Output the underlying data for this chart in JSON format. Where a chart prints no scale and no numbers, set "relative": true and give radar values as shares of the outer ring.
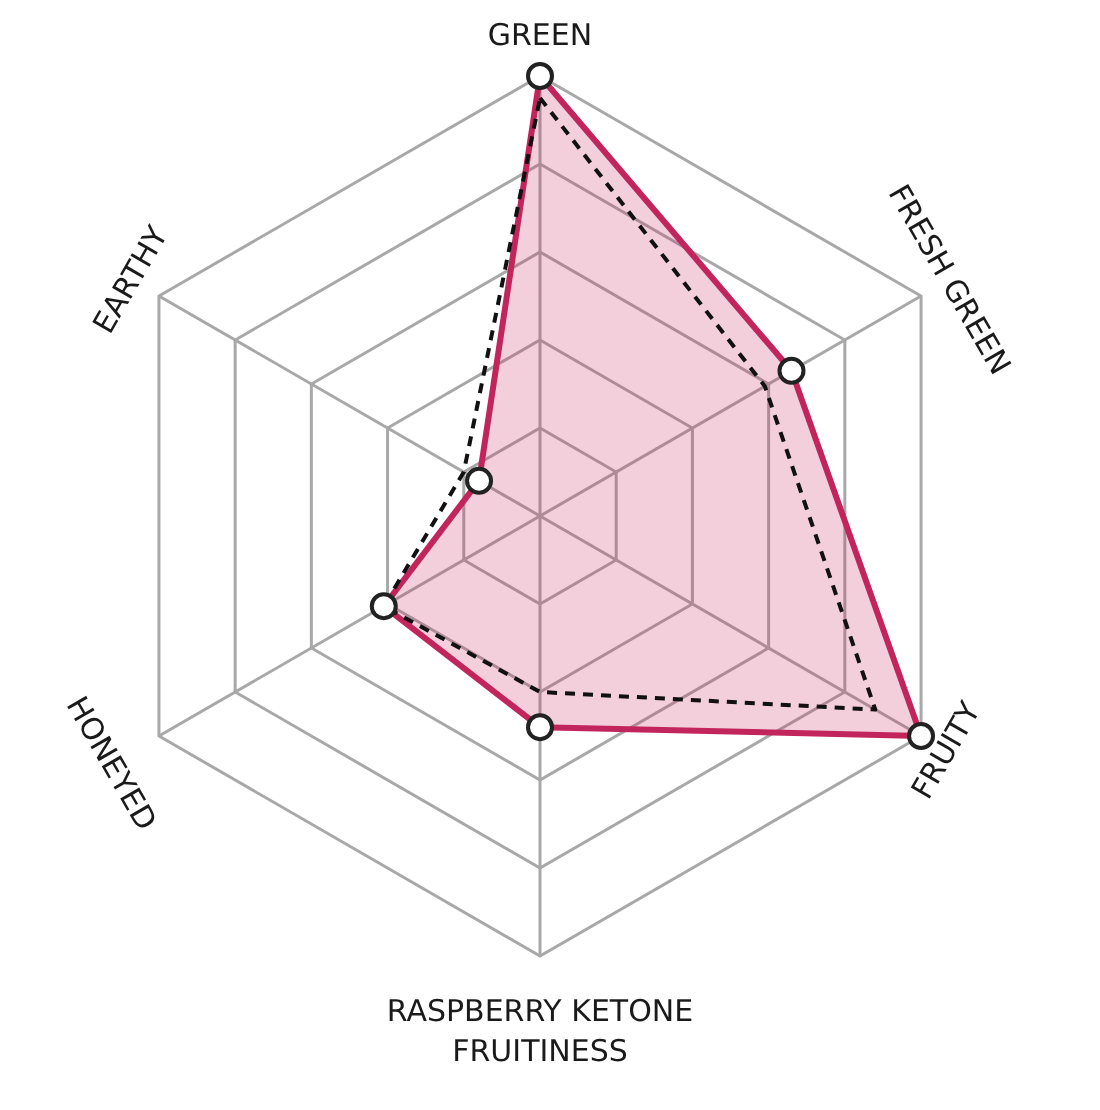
{
  "chart_data": {
    "type": "radar",
    "relative": true,
    "grid": true,
    "categories": [
      "GREEN",
      "FRESH GREEN",
      "FRUITY",
      "RASPBERRY KETONE FRUITINESS",
      "HONEYED",
      "EARTHY"
    ],
    "series": [
      {
        "color": "#c2255c",
        "values": [
          1.0,
          0.66,
          1.0,
          0.48,
          0.41,
          0.16
        ],
        "marker": "circle",
        "line_style": "solid"
      },
      {
        "color": "#111111",
        "values": [
          0.95,
          0.59,
          0.88,
          0.4,
          0.41,
          0.2
        ],
        "marker": "none",
        "line_style": "dashed"
      }
    ]
  }
}
